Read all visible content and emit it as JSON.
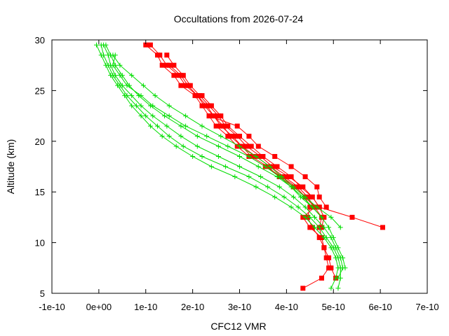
{
  "chart_data": {
    "type": "line",
    "title": "Occultations from 2026-07-24",
    "xlabel": "CFC12 VMR",
    "ylabel": "Altitude (km)",
    "xlim": [
      -1e-10,
      7e-10
    ],
    "ylim": [
      5,
      30
    ],
    "x_tick_labels": [
      "-1e-10",
      "0e+00",
      "1e-10",
      "2e-10",
      "3e-10",
      "4e-10",
      "5e-10",
      "6e-10",
      "7e-10"
    ],
    "x_ticks": [
      -1e-10,
      0,
      1e-10,
      2e-10,
      3e-10,
      4e-10,
      5e-10,
      6e-10,
      7e-10
    ],
    "y_tick_labels": [
      "5",
      "10",
      "15",
      "20",
      "25",
      "30"
    ],
    "y_ticks": [
      5,
      10,
      15,
      20,
      25,
      30
    ],
    "grid": false,
    "legend": "none",
    "colors": {
      "red_series": "#ff0000",
      "green_series": "#00dd00",
      "axis": "#000000"
    },
    "series": [
      {
        "color": "red",
        "marker": "square",
        "y": [
          29.5,
          28.5,
          27.5,
          26.5,
          25.5,
          24.5,
          23.5,
          22.5,
          21.5,
          20.5,
          19.5,
          18.5,
          17.5,
          16.5,
          15.5,
          14.5,
          13.5,
          12.5,
          11.5,
          10.5,
          9.5,
          8.5,
          7.5,
          6.5,
          5.5
        ],
        "x": [
          1e-10,
          1.25e-10,
          1.35e-10,
          1.6e-10,
          1.75e-10,
          2.05e-10,
          2.2e-10,
          2.35e-10,
          2.5e-10,
          2.75e-10,
          2.95e-10,
          3.2e-10,
          3.55e-10,
          3.9e-10,
          4.2e-10,
          4.4e-10,
          4.5e-10,
          4.45e-10,
          4.55e-10,
          4.7e-10,
          4.8e-10,
          4.85e-10,
          4.9e-10,
          4.75e-10,
          4.35e-10
        ]
      },
      {
        "color": "red",
        "marker": "square",
        "y": [
          29.5,
          28.5,
          27.5,
          26.5,
          25.5,
          24.5,
          23.5,
          22.5,
          21.5,
          20.5,
          19.5,
          18.5,
          17.5,
          16.5,
          15.5,
          14.5,
          13.5,
          12.5,
          11.5,
          10.5,
          9.5,
          8.5,
          7.5,
          6.5
        ],
        "x": [
          1.1e-10,
          1.3e-10,
          1.45e-10,
          1.7e-10,
          1.85e-10,
          2.1e-10,
          2.25e-10,
          2.45e-10,
          2.6e-10,
          2.85e-10,
          3.05e-10,
          3.35e-10,
          3.65e-10,
          3.95e-10,
          4.25e-10,
          4.45e-10,
          4.6e-10,
          4.35e-10,
          4.5e-10,
          4.75e-10,
          4.8e-10,
          4.9e-10,
          4.95e-10,
          5.05e-10
        ]
      },
      {
        "color": "red",
        "marker": "square",
        "y": [
          28.5,
          27.5,
          26.5,
          25.5,
          24.5,
          23.5,
          22.5,
          21.5,
          20.5,
          19.5,
          18.5,
          17.5,
          16.5,
          15.5,
          14.5,
          13.5,
          12.5,
          11.5
        ],
        "x": [
          1.45e-10,
          1.6e-10,
          1.8e-10,
          1.95e-10,
          2.15e-10,
          2.35e-10,
          2.55e-10,
          2.7e-10,
          2.95e-10,
          3.15e-10,
          3.45e-10,
          3.7e-10,
          4.05e-10,
          4.35e-10,
          4.55e-10,
          4.7e-10,
          5.4e-10,
          6.05e-10
        ]
      },
      {
        "color": "red",
        "marker": "square",
        "y": [
          27.5,
          26.5,
          25.5,
          24.5,
          23.5,
          22.5,
          21.5,
          20.5,
          19.5,
          18.5,
          17.5,
          16.5,
          15.5,
          14.5,
          13.5,
          12.5,
          11.5,
          10.5
        ],
        "x": [
          1.5e-10,
          1.75e-10,
          1.9e-10,
          2.1e-10,
          2.3e-10,
          2.45e-10,
          2.65e-10,
          2.8e-10,
          3.05e-10,
          3.25e-10,
          3.6e-10,
          3.85e-10,
          4.15e-10,
          4.4e-10,
          4.6e-10,
          4.75e-10,
          4.7e-10,
          4.75e-10
        ]
      },
      {
        "color": "red",
        "marker": "square",
        "y": [
          24.5,
          23.5,
          22.5,
          21.5,
          20.5,
          19.5,
          18.5,
          17.5,
          16.5,
          15.5,
          14.5,
          13.5,
          12.5,
          11.5
        ],
        "x": [
          2.2e-10,
          2.4e-10,
          2.6e-10,
          2.75e-10,
          3e-10,
          3.25e-10,
          3.5e-10,
          3.8e-10,
          4.1e-10,
          4.3e-10,
          4.55e-10,
          4.7e-10,
          4.8e-10,
          4.75e-10
        ]
      },
      {
        "color": "red",
        "marker": "square",
        "y": [
          22.5,
          21.5,
          20.5,
          19.5,
          18.5,
          17.5,
          16.5,
          15.5,
          14.5,
          13.5
        ],
        "x": [
          2.35e-10,
          2.95e-10,
          3.2e-10,
          3.4e-10,
          3.75e-10,
          4.1e-10,
          4.4e-10,
          4.65e-10,
          4.7e-10,
          4.85e-10
        ]
      },
      {
        "color": "green",
        "marker": "plus",
        "y": [
          29.5,
          28.5,
          27.5,
          26.5,
          25.5,
          24.5,
          23.5,
          22.5,
          21.5,
          20.5,
          19.5,
          18.5,
          17.5,
          16.5,
          15.5,
          14.5,
          13.5,
          12.5,
          11.5,
          10.5,
          9.5,
          8.5,
          7.5,
          6.5,
          5.5
        ],
        "x": [
          -5e-12,
          5e-12,
          1.5e-11,
          2.5e-11,
          4e-11,
          5.5e-11,
          7e-11,
          9e-11,
          1.1e-10,
          1.35e-10,
          1.65e-10,
          2e-10,
          2.4e-10,
          2.9e-10,
          3.35e-10,
          3.75e-10,
          4.1e-10,
          4.4e-10,
          4.6e-10,
          4.8e-10,
          4.95e-10,
          5.05e-10,
          5.1e-10,
          5.05e-10,
          4.95e-10
        ]
      },
      {
        "color": "green",
        "marker": "plus",
        "y": [
          29.5,
          28.5,
          27.5,
          26.5,
          25.5,
          24.5,
          23.5,
          22.5,
          21.5,
          20.5,
          19.5,
          18.5,
          17.5,
          16.5,
          15.5,
          14.5,
          13.5,
          12.5,
          11.5,
          10.5,
          9.5,
          8.5,
          7.5,
          6.5,
          5.5
        ],
        "x": [
          5e-12,
          1e-11,
          2e-11,
          3e-11,
          4.5e-11,
          6e-11,
          8e-11,
          1e-10,
          1.25e-10,
          1.5e-10,
          1.8e-10,
          2.2e-10,
          2.7e-10,
          3.2e-10,
          3.6e-10,
          3.95e-10,
          4.25e-10,
          4.5e-10,
          4.7e-10,
          4.85e-10,
          5e-10,
          5.1e-10,
          5.15e-10,
          5.15e-10,
          5.1e-10
        ]
      },
      {
        "color": "green",
        "marker": "plus",
        "y": [
          29.5,
          28.5,
          27.5,
          26.5,
          25.5,
          24.5,
          23.5,
          22.5,
          21.5,
          20.5,
          19.5,
          18.5,
          17.5,
          16.5,
          15.5,
          14.5,
          13.5,
          12.5,
          11.5,
          10.5,
          9.5,
          8.5,
          7.5,
          6.5
        ],
        "x": [
          1e-11,
          2e-11,
          2.5e-11,
          3.5e-11,
          5e-11,
          7e-11,
          9e-11,
          1.15e-10,
          1.45e-10,
          1.75e-10,
          2.1e-10,
          2.55e-10,
          3e-10,
          3.45e-10,
          3.85e-10,
          4.15e-10,
          4.4e-10,
          4.6e-10,
          4.8e-10,
          4.95e-10,
          5.05e-10,
          5.15e-10,
          5.2e-10,
          5.1e-10
        ]
      },
      {
        "color": "green",
        "marker": "plus",
        "y": [
          29.5,
          28.5,
          27.5,
          26.5,
          25.5,
          24.5,
          23.5,
          22.5,
          21.5,
          20.5,
          19.5,
          18.5,
          17.5,
          16.5,
          15.5,
          14.5,
          13.5,
          12.5,
          11.5,
          10.5,
          9.5,
          8.5,
          7.5
        ],
        "x": [
          1.5e-11,
          2.5e-11,
          3.5e-11,
          5e-11,
          6.5e-11,
          8.5e-11,
          1.1e-10,
          1.4e-10,
          1.75e-10,
          2.1e-10,
          2.55e-10,
          3e-10,
          3.4e-10,
          3.8e-10,
          4.1e-10,
          4.35e-10,
          4.55e-10,
          4.75e-10,
          4.9e-10,
          5e-10,
          5.1e-10,
          5.2e-10,
          5.25e-10
        ]
      },
      {
        "color": "green",
        "marker": "plus",
        "y": [
          28.5,
          27.5,
          26.5,
          25.5,
          24.5,
          23.5,
          22.5,
          21.5,
          20.5,
          19.5,
          18.5,
          17.5,
          16.5,
          15.5,
          14.5,
          13.5,
          12.5,
          11.5
        ],
        "x": [
          3e-11,
          4.5e-11,
          7e-11,
          9.5e-11,
          1.2e-10,
          1.5e-10,
          1.85e-10,
          2.2e-10,
          2.6e-10,
          3e-10,
          3.35e-10,
          3.65e-10,
          3.9e-10,
          4.15e-10,
          4.4e-10,
          4.65e-10,
          4.95e-10,
          5.15e-10
        ]
      },
      {
        "color": "green",
        "marker": "plus",
        "y": [
          28.5,
          27.5,
          26.5,
          25.5,
          24.5,
          23.5,
          22.5,
          21.5,
          20.5,
          19.5,
          18.5,
          17.5,
          16.5,
          15.5,
          14.5,
          13.5,
          12.5
        ],
        "x": [
          3.5e-11,
          3e-11,
          4.5e-11,
          6e-11,
          9e-11,
          1.15e-10,
          1.5e-10,
          1.85e-10,
          2.3e-10,
          2.75e-10,
          3.2e-10,
          3.55e-10,
          3.85e-10,
          4.1e-10,
          4.3e-10,
          4.55e-10,
          4.75e-10
        ]
      }
    ]
  }
}
